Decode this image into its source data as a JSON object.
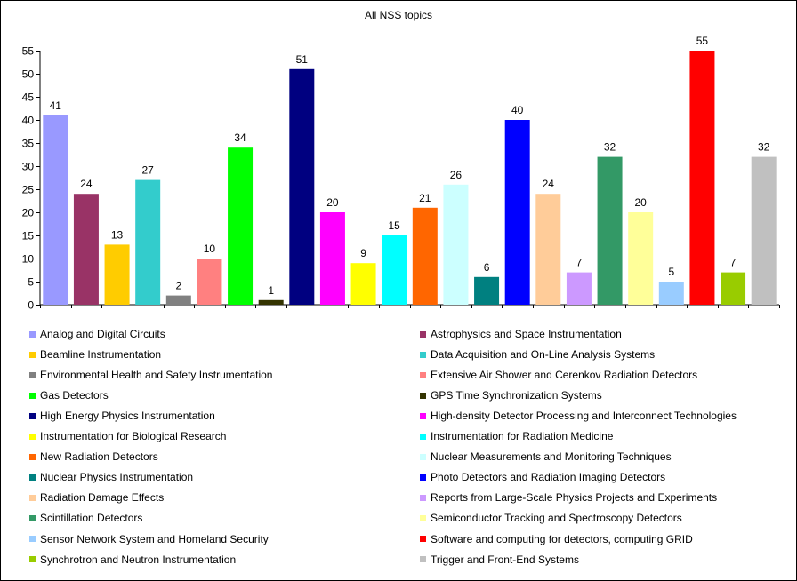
{
  "chart_data": {
    "type": "bar",
    "title": "All NSS topics",
    "xlabel": "",
    "ylabel": "",
    "ylim": [
      0,
      55
    ],
    "yticks": [
      0,
      5,
      10,
      15,
      20,
      25,
      30,
      35,
      40,
      45,
      50,
      55
    ],
    "grid": false,
    "legend_position": "bottom",
    "categories": [
      "Analog and Digital Circuits",
      "Astrophysics and Space Instrumentation",
      "Beamline Instrumentation",
      "Data Acquisition and On-Line Analysis Systems",
      "Environmental Health and Safety Instrumentation",
      "Extensive Air Shower and Cerenkov Radiation Detectors",
      "Gas Detectors",
      "GPS Time Synchronization Systems",
      "High Energy Physics Instrumentation",
      "High-density Detector Processing and Interconnect Technologies",
      "Instrumentation for Biological Research",
      "Instrumentation for Radiation Medicine",
      "New Radiation Detectors",
      "Nuclear Measurements and Monitoring Techniques",
      "Nuclear Physics Instrumentation",
      "Photo Detectors and Radiation Imaging Detectors",
      "Radiation Damage Effects",
      "Reports from Large-Scale Physics Projects and Experiments",
      "Scintillation Detectors",
      "Semiconductor Tracking and Spectroscopy Detectors",
      "Sensor Network System and Homeland Security",
      "Software and computing for detectors, computing GRID",
      "Synchrotron and Neutron Instrumentation",
      "Trigger and Front-End Systems"
    ],
    "values": [
      41,
      24,
      13,
      27,
      2,
      10,
      34,
      1,
      51,
      20,
      9,
      15,
      21,
      26,
      6,
      40,
      24,
      7,
      32,
      20,
      5,
      55,
      7,
      32
    ],
    "colors": [
      "#9999ff",
      "#993366",
      "#ffcc00",
      "#33cccc",
      "#808080",
      "#ff8080",
      "#00ff00",
      "#333300",
      "#000080",
      "#ff00ff",
      "#ffff00",
      "#00ffff",
      "#ff6600",
      "#ccffff",
      "#008080",
      "#0000ff",
      "#ffcc99",
      "#cc99ff",
      "#339966",
      "#ffff99",
      "#99ccff",
      "#ff0000",
      "#99cc00",
      "#c0c0c0"
    ]
  }
}
